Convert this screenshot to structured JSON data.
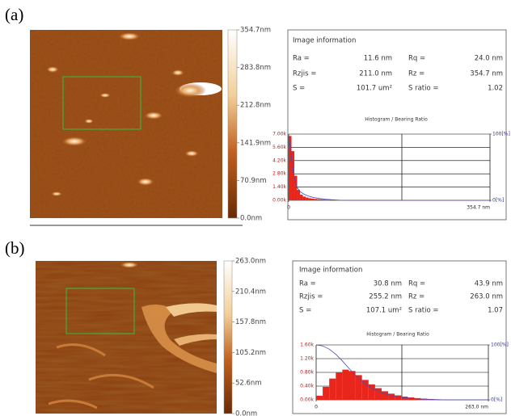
{
  "panels": [
    {
      "label": "(a)",
      "colorbar_labels": [
        "354.7nm",
        "283.8nm",
        "212.8nm",
        "141.9nm",
        "70.9nm",
        "0.0nm"
      ],
      "info": {
        "title": "Image information",
        "rows": [
          [
            "Ra =",
            "11.6 nm",
            "Rq =",
            "24.0 nm"
          ],
          [
            "Rzjis =",
            "211.0 nm",
            "Rz =",
            "354.7 nm"
          ],
          [
            "S =",
            "101.7 um²",
            "S ratio =",
            "1.02"
          ]
        ]
      },
      "histogram": {
        "title": "Histogram / Bearing Ratio",
        "bins": [
          0,
          5,
          10,
          15,
          20,
          25,
          30,
          35,
          40,
          45,
          50,
          55,
          60,
          65,
          70,
          75,
          80,
          85,
          90,
          95,
          100
        ],
        "counts": [
          6800,
          5200,
          2600,
          1100,
          600,
          400,
          300,
          220,
          180,
          150,
          120,
          100,
          80,
          70,
          60,
          50,
          40,
          35,
          30,
          25
        ],
        "color": "#e8261c",
        "curve_color": "#4a4ab8",
        "xlim": [
          0,
          354.7
        ],
        "xticks": [
          0,
          {
            "value": 354.7,
            "label": "354.7 nm"
          }
        ],
        "ylim": [
          0,
          7000
        ],
        "yticks": [
          {
            "value": 0,
            "label": "0.00k"
          },
          {
            "value": 1400,
            "label": "1.40k"
          },
          {
            "value": 2800,
            "label": "2.80k"
          },
          {
            "value": 4200,
            "label": "4.20k"
          },
          {
            "value": 5600,
            "label": "5.60k"
          },
          {
            "value": 7000,
            "label": "7.00k"
          }
        ],
        "y2lim": [
          0,
          100
        ],
        "y2ticks": [
          {
            "value": 0,
            "label": "0[%]"
          },
          {
            "value": 100,
            "label": "100[%]"
          }
        ]
      }
    },
    {
      "label": "(b)",
      "colorbar_labels": [
        "263.0nm",
        "210.4nm",
        "157.8nm",
        "105.2nm",
        "52.6nm",
        "0.0nm"
      ],
      "info": {
        "title": "Image information",
        "rows": [
          [
            "Ra =",
            "30.8 nm",
            "Rq =",
            "43.9 nm"
          ],
          [
            "Rzjis =",
            "255.2 nm",
            "Rz =",
            "263.0 nm"
          ],
          [
            "S =",
            "107.1 um²",
            "S ratio =",
            "1.07"
          ]
        ]
      },
      "histogram": {
        "title": "Histogram / Bearing Ratio",
        "bins": [
          0,
          10,
          20,
          30,
          40,
          50,
          60,
          70,
          80,
          90,
          100,
          110,
          120,
          130,
          140,
          150,
          160,
          170,
          180,
          190,
          200
        ],
        "counts": [
          120,
          380,
          620,
          800,
          880,
          840,
          720,
          580,
          450,
          340,
          250,
          180,
          130,
          95,
          70,
          50,
          35,
          25,
          15,
          10
        ],
        "color": "#e8261c",
        "curve_color": "#4a4ab8",
        "xlim": [
          0,
          263.0
        ],
        "xticks": [
          0,
          {
            "value": 263.0,
            "label": "263.0 nm"
          }
        ],
        "ylim": [
          0,
          1600
        ],
        "yticks": [
          {
            "value": 0,
            "label": "0.00k"
          },
          {
            "value": 400,
            "label": "0.40k"
          },
          {
            "value": 800,
            "label": "0.80k"
          },
          {
            "value": 1200,
            "label": "1.20k"
          },
          {
            "value": 1600,
            "label": "1.60k"
          }
        ],
        "y2lim": [
          0,
          100
        ],
        "y2ticks": [
          {
            "value": 0,
            "label": "0[%]"
          },
          {
            "value": 100,
            "label": "100[%]"
          }
        ]
      }
    }
  ]
}
